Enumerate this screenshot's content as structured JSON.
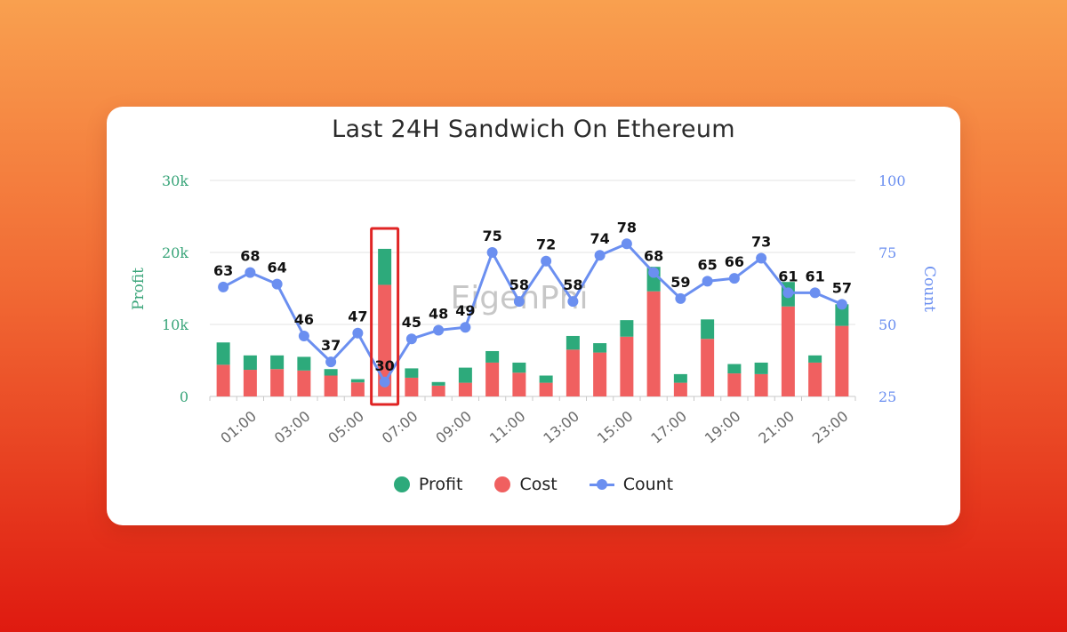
{
  "colors": {
    "profit": "#2daa7b",
    "cost": "#f06060",
    "count": "#6b8ff0",
    "highlight": "#e02424",
    "left_axis": "#3aa57a",
    "right_axis": "#6b8ff0"
  },
  "chart_data": {
    "type": "bar",
    "title": "Last 24H Sandwich On Ethereum",
    "watermark": "EigenPhi",
    "categories": [
      "00:00",
      "01:00",
      "02:00",
      "03:00",
      "04:00",
      "05:00",
      "06:00",
      "07:00",
      "08:00",
      "09:00",
      "10:00",
      "11:00",
      "12:00",
      "13:00",
      "14:00",
      "15:00",
      "16:00",
      "17:00",
      "18:00",
      "19:00",
      "20:00",
      "21:00",
      "22:00",
      "23:00"
    ],
    "x_tick_labels": [
      "01:00",
      "03:00",
      "05:00",
      "07:00",
      "09:00",
      "11:00",
      "13:00",
      "15:00",
      "17:00",
      "19:00",
      "21:00",
      "23:00"
    ],
    "y_left": {
      "label": "Profit",
      "min": 0,
      "max": 30000,
      "ticks": [
        "0",
        "10k",
        "20k",
        "30k"
      ]
    },
    "y_right": {
      "label": "Count",
      "min": 25,
      "max": 100,
      "ticks": [
        "25",
        "50",
        "75",
        "100"
      ]
    },
    "grid": true,
    "legend_position": "bottom",
    "series": [
      {
        "name": "Profit",
        "type": "bar",
        "stack": "total",
        "axis": "left",
        "values": [
          3100,
          2000,
          1900,
          1900,
          900,
          450,
          5000,
          1300,
          500,
          2100,
          1600,
          1400,
          1000,
          1900,
          1300,
          2300,
          3400,
          1200,
          2700,
          1300,
          1600,
          3400,
          1000,
          3000
        ]
      },
      {
        "name": "Cost",
        "type": "bar",
        "stack": "total",
        "axis": "left",
        "values": [
          4400,
          3700,
          3800,
          3600,
          2900,
          1950,
          15500,
          2600,
          1500,
          1900,
          4700,
          3300,
          1900,
          6500,
          6100,
          8300,
          14600,
          1900,
          8000,
          3200,
          3100,
          12500,
          4700,
          9800
        ]
      },
      {
        "name": "Count",
        "type": "line",
        "axis": "right",
        "values": [
          63,
          68,
          64,
          46,
          37,
          47,
          30,
          45,
          48,
          49,
          75,
          58,
          72,
          58,
          74,
          78,
          68,
          59,
          65,
          66,
          73,
          61,
          61,
          57
        ]
      }
    ],
    "highlight_category": "06:00"
  },
  "legend": {
    "profit_label": "Profit",
    "cost_label": "Cost",
    "count_label": "Count"
  }
}
